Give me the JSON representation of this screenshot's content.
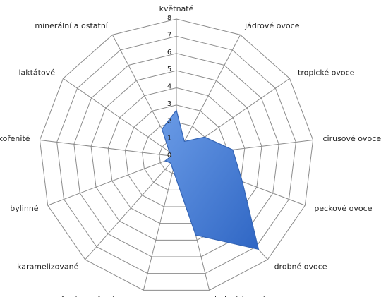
{
  "chart_data": {
    "type": "radar",
    "categories": [
      "květnaté",
      "jádrové ovoce",
      "tropické ovoce",
      "cirusové ovoce",
      "peckové ovoce",
      "drobné ovoce",
      "drobné tmavé ovoce",
      "vařené a sušené ovoce",
      "karamelizované",
      "bylinné",
      "kořenité",
      "laktátové",
      "minerální a ostatní"
    ],
    "values": [
      2.7,
      1.0,
      2.0,
      3.3,
      4.1,
      7.2,
      4.7,
      0.8,
      0.5,
      0.7,
      0.3,
      0.5,
      1.8
    ],
    "color": "#4a80d4",
    "ylim": [
      0,
      8
    ],
    "yticks": [
      0,
      1,
      2,
      3,
      4,
      5,
      6,
      7,
      8
    ],
    "grid": true
  }
}
